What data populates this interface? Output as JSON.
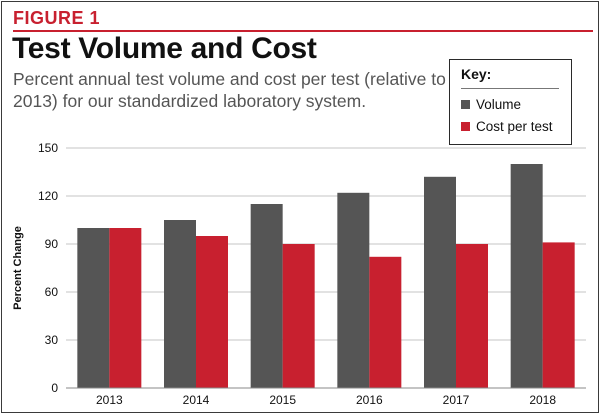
{
  "figure_label": "FIGURE 1",
  "title": "Test Volume and Cost",
  "subtitle": "Percent annual test volume and cost per test (relative to 2013) for our standardized laboratory system.",
  "key": {
    "title": "Key:",
    "items": [
      {
        "label": "Volume",
        "color": "#555555"
      },
      {
        "label": "Cost per test",
        "color": "#c8202f"
      }
    ]
  },
  "colors": {
    "accent": "#c8202f",
    "volume": "#555555",
    "cost": "#c8202f"
  },
  "chart_data": {
    "type": "bar",
    "categories": [
      "2013",
      "2014",
      "2015",
      "2016",
      "2017",
      "2018"
    ],
    "series": [
      {
        "name": "Volume",
        "values": [
          100,
          105,
          115,
          122,
          132,
          140
        ]
      },
      {
        "name": "Cost per test",
        "values": [
          100,
          95,
          90,
          82,
          90,
          91
        ]
      }
    ],
    "title": "Test Volume and Cost",
    "subtitle": "Percent annual test volume and cost per test (relative to 2013) for our standardized laboratory system.",
    "xlabel": "",
    "ylabel": "Percent Change",
    "ylim": [
      0,
      150
    ],
    "yticks": [
      0,
      30,
      60,
      90,
      120,
      150
    ],
    "grid": true,
    "legend": "top-right"
  }
}
